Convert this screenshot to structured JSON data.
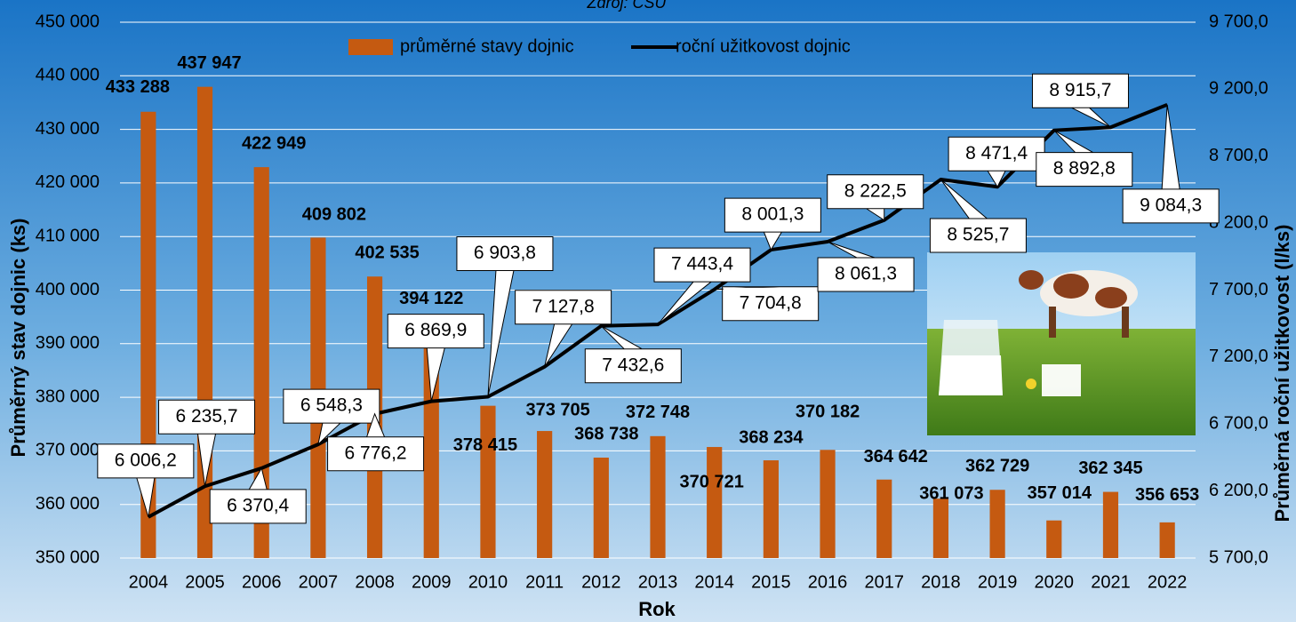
{
  "chart_data": {
    "type": "bar",
    "subtitle": "Zdroj: ČSÚ",
    "xlabel": "Rok",
    "ylabel": "Průměrný stav dojnic (ks)",
    "y2label": "Průměrná roční užitkovost (l/ks)",
    "categories": [
      "2004",
      "2005",
      "2006",
      "2007",
      "2008",
      "2009",
      "2010",
      "2011",
      "2012",
      "2013",
      "2014",
      "2015",
      "2016",
      "2017",
      "2018",
      "2019",
      "2020",
      "2021",
      "2022"
    ],
    "ylim": [
      350000,
      450000
    ],
    "yticks": [
      {
        "value": 350000,
        "label": "350 000"
      },
      {
        "value": 360000,
        "label": "360 000"
      },
      {
        "value": 370000,
        "label": "370 000"
      },
      {
        "value": 380000,
        "label": "380 000"
      },
      {
        "value": 390000,
        "label": "390 000"
      },
      {
        "value": 400000,
        "label": "400 000"
      },
      {
        "value": 410000,
        "label": "410 000"
      },
      {
        "value": 420000,
        "label": "420 000"
      },
      {
        "value": 430000,
        "label": "430 000"
      },
      {
        "value": 440000,
        "label": "440 000"
      },
      {
        "value": 450000,
        "label": "450 000"
      }
    ],
    "y2lim": [
      5700,
      9700
    ],
    "y2ticks": [
      {
        "value": 5700,
        "label": "5 700,0"
      },
      {
        "value": 6200,
        "label": "6 200,0"
      },
      {
        "value": 6700,
        "label": "6 700,0"
      },
      {
        "value": 7200,
        "label": "7 200,0"
      },
      {
        "value": 7700,
        "label": "7 700,0"
      },
      {
        "value": 8200,
        "label": "8 200,0"
      },
      {
        "value": 8700,
        "label": "8 700,0"
      },
      {
        "value": 9200,
        "label": "9 200,0"
      },
      {
        "value": 9700,
        "label": "9 700,0"
      }
    ],
    "grid": true,
    "legend": "top",
    "series": [
      {
        "name": "průměrné stavy dojnic",
        "type": "bar",
        "color": "#c55a11",
        "values": [
          433288,
          437947,
          422949,
          409802,
          402535,
          394122,
          378415,
          373705,
          368738,
          372748,
          370721,
          368234,
          370182,
          364642,
          361073,
          362729,
          357014,
          362345,
          356653
        ],
        "value_labels": [
          "433 288",
          "437 947",
          "422 949",
          "409 802",
          "402 535",
          "394 122",
          "378 415",
          "373 705",
          "368 738",
          "372 748",
          "370 721",
          "368 234",
          "370 182",
          "364 642",
          "361 073",
          "362 729",
          "357 014",
          "362 345",
          "356 653"
        ]
      },
      {
        "name": "roční užitkovost dojnic",
        "type": "line",
        "axis": "y2",
        "color": "#000000",
        "values": [
          6006.2,
          6235.7,
          6370.4,
          6548.3,
          6776.2,
          6869.9,
          6903.8,
          7127.8,
          7432.6,
          7443.4,
          7704.8,
          8001.3,
          8061.3,
          8222.5,
          8525.7,
          8471.4,
          8892.8,
          8915.7,
          9084.3
        ],
        "value_labels": [
          "6 006,2",
          "6 235,7",
          "6 370,4",
          "6 548,3",
          "6 776,2",
          "6 869,9",
          "6 903,8",
          "7 127,8",
          "7 432,6",
          "7 443,4",
          "7 704,8",
          "8 001,3",
          "8 061,3",
          "8 222,5",
          "8 525,7",
          "8 471,4",
          "8 892,8",
          "8 915,7",
          "9 084,3"
        ]
      }
    ]
  }
}
